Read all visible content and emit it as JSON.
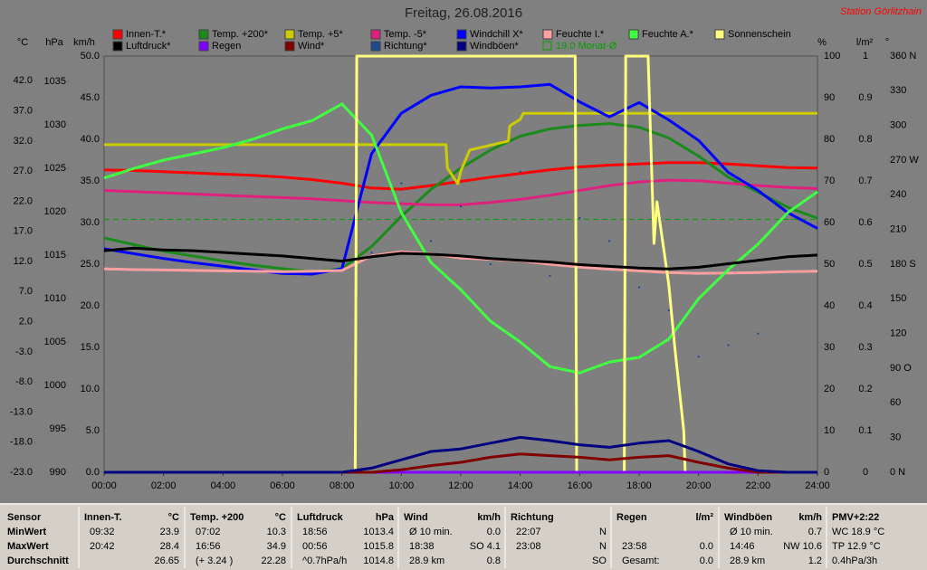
{
  "chart_data": {
    "type": "line",
    "title": "Freitag, 26.08.2016",
    "subtitle": "Station Görlitzhain",
    "xlim": [
      0,
      24
    ],
    "xticks": [
      {
        "value": 0,
        "label": "00:00"
      },
      {
        "value": 2,
        "label": "02:00"
      },
      {
        "value": 4,
        "label": "04:00"
      },
      {
        "value": 6,
        "label": "06:00"
      },
      {
        "value": 8,
        "label": "08:00"
      },
      {
        "value": 10,
        "label": "10:00"
      },
      {
        "value": 12,
        "label": "12:00"
      },
      {
        "value": 14,
        "label": "14:00"
      },
      {
        "value": 16,
        "label": "16:00"
      },
      {
        "value": 18,
        "label": "18:00"
      },
      {
        "value": 20,
        "label": "20:00"
      },
      {
        "value": 22,
        "label": "22:00"
      },
      {
        "value": 24,
        "label": "24:00"
      }
    ],
    "x": [
      0,
      1,
      2,
      3,
      4,
      5,
      6,
      7,
      8,
      9,
      10,
      11,
      12,
      13,
      14,
      15,
      16,
      17,
      18,
      19,
      20,
      21,
      22,
      23,
      24
    ],
    "axes": [
      {
        "unit": "°C",
        "lim": [
          -23,
          46.1
        ],
        "ticks": [
          {
            "value": 42,
            "label": "42.0"
          },
          {
            "value": 37,
            "label": "37.0"
          },
          {
            "value": 32,
            "label": "32.0"
          },
          {
            "value": 27,
            "label": "27.0"
          },
          {
            "value": 22,
            "label": "22.0"
          },
          {
            "value": 17,
            "label": "17.0"
          },
          {
            "value": 12,
            "label": "12.0"
          },
          {
            "value": 7,
            "label": "7.0"
          },
          {
            "value": 2,
            "label": "2.0"
          },
          {
            "value": -3,
            "label": "-3.0"
          },
          {
            "value": -8,
            "label": "-8.0"
          },
          {
            "value": -13,
            "label": "-13.0"
          },
          {
            "value": -18,
            "label": "-18.0"
          },
          {
            "value": -23,
            "label": "-23.0"
          }
        ]
      },
      {
        "unit": "hPa",
        "lim": [
          990,
          1037.9
        ],
        "ticks": [
          1035,
          1030,
          1025,
          1020,
          1015,
          1010,
          1005,
          1000,
          995,
          990
        ]
      },
      {
        "unit": "km/h",
        "lim": [
          0,
          50
        ],
        "ticks": [
          {
            "value": 50,
            "label": "50.0"
          },
          {
            "value": 45,
            "label": "45.0"
          },
          {
            "value": 40,
            "label": "40.0"
          },
          {
            "value": 35,
            "label": "35.0"
          },
          {
            "value": 30,
            "label": "30.0"
          },
          {
            "value": 25,
            "label": "25.0"
          },
          {
            "value": 20,
            "label": "20.0"
          },
          {
            "value": 15,
            "label": "15.0"
          },
          {
            "value": 10,
            "label": "10.0"
          },
          {
            "value": 5,
            "label": "5.0"
          },
          {
            "value": 0,
            "label": "0.0"
          }
        ]
      },
      {
        "unit": "%",
        "lim": [
          0,
          100
        ],
        "ticks": [
          100,
          90,
          80,
          70,
          60,
          50,
          40,
          30,
          20,
          10,
          0
        ]
      },
      {
        "unit": "l/m²",
        "lim": [
          0,
          1
        ],
        "ticks": [
          1,
          0.9,
          0.8,
          0.7,
          0.6,
          0.5,
          0.4,
          0.3,
          0.2,
          0.1,
          0
        ]
      },
      {
        "unit": "°",
        "lim": [
          0,
          360
        ],
        "ticks": [
          {
            "value": 360,
            "label": "360 N"
          },
          330,
          300,
          {
            "value": 270,
            "label": "270 W"
          },
          240,
          210,
          {
            "value": 180,
            "label": "180 S"
          },
          150,
          120,
          {
            "value": 90,
            "label": "90 O"
          },
          60,
          30,
          {
            "value": 0,
            "label": "0 N"
          }
        ]
      }
    ],
    "series": [
      {
        "name": "Innen-T.*",
        "color": "#ff0000",
        "axis": "°C",
        "values": [
          27.2,
          27.1,
          26.9,
          26.7,
          26.5,
          26.3,
          26.0,
          25.6,
          25.0,
          24.2,
          24.0,
          24.6,
          25.3,
          26.0,
          26.6,
          27.2,
          27.7,
          28.0,
          28.2,
          28.4,
          28.4,
          28.2,
          27.9,
          27.6,
          27.5
        ]
      },
      {
        "name": "Temp. +200*",
        "color": "#1a8a1a",
        "axis": "°C",
        "values": [
          15.9,
          14.8,
          13.7,
          12.9,
          12.1,
          11.4,
          10.8,
          10.3,
          10.8,
          14.5,
          19.5,
          24.0,
          27.5,
          30.5,
          32.8,
          34.0,
          34.6,
          34.9,
          34.3,
          32.5,
          29.5,
          26.0,
          23.5,
          21.0,
          19.2
        ]
      },
      {
        "name": "Temp. +5*",
        "color": "#cccc00",
        "axis": "°C",
        "x": [
          0,
          11.5,
          11.55,
          11.9,
          12.0,
          12.3,
          13.6,
          13.65,
          14.0,
          14.1,
          24
        ],
        "values": [
          31.4,
          31.4,
          27.5,
          24.9,
          27.0,
          30.5,
          32.0,
          34.5,
          35.6,
          36.6,
          36.6
        ]
      },
      {
        "name": "Temp. -5*",
        "color": "#e0207f",
        "axis": "°C",
        "values": [
          23.8,
          23.6,
          23.4,
          23.2,
          23.0,
          22.8,
          22.6,
          22.4,
          22.1,
          21.8,
          21.6,
          21.4,
          21.4,
          21.8,
          22.3,
          23.0,
          23.8,
          24.6,
          25.2,
          25.5,
          25.4,
          25.0,
          24.6,
          24.3,
          24.1
        ]
      },
      {
        "name": "Windchill X*",
        "color": "#0000ff",
        "axis": "°C",
        "values": [
          14.1,
          13.3,
          12.5,
          11.8,
          11.2,
          10.6,
          10.0,
          9.9,
          10.8,
          29.9,
          36.6,
          39.6,
          41.0,
          40.8,
          41.0,
          41.4,
          38.5,
          36.0,
          38.4,
          35.5,
          32.1,
          26.8,
          23.8,
          20.1,
          17.5
        ]
      },
      {
        "name": "Feuchte I.*",
        "color": "#ff9f9f",
        "axis": "%",
        "values": [
          48.9,
          48.7,
          48.6,
          48.5,
          48.4,
          48.3,
          48.2,
          48.3,
          48.5,
          52.0,
          53.0,
          52.5,
          51.5,
          51.2,
          50.8,
          50.0,
          49.3,
          48.8,
          48.4,
          48.0,
          47.8,
          47.9,
          48.0,
          48.2,
          48.3
        ]
      },
      {
        "name": "Feuchte A.*",
        "color": "#40ff40",
        "axis": "%",
        "values": [
          70.7,
          73.0,
          75.0,
          76.5,
          78.0,
          80.0,
          82.5,
          84.5,
          88.5,
          81.0,
          62.4,
          50.4,
          43.9,
          36.3,
          31.3,
          25.4,
          23.9,
          26.5,
          27.6,
          32.0,
          41.7,
          48.7,
          54.8,
          62.4,
          67.4
        ]
      },
      {
        "name": "Sonnenschein",
        "color": "#ffff80",
        "axis": "%",
        "x": [
          0,
          8.45,
          8.5,
          15.85,
          15.9,
          17.5,
          17.55,
          18.3,
          18.5,
          18.6,
          18.7,
          18.8,
          19.0,
          19.2,
          19.5,
          19.55,
          24
        ],
        "values": [
          0,
          0,
          100,
          100,
          0,
          0,
          100,
          100,
          55,
          65,
          60,
          55,
          45,
          30,
          10,
          0,
          0
        ]
      },
      {
        "name": "Luftdruck*",
        "color": "#000000",
        "axis": "hPa",
        "values": [
          1015.5,
          1015.8,
          1015.6,
          1015.5,
          1015.3,
          1015.1,
          1014.9,
          1014.6,
          1014.3,
          1014.8,
          1015.2,
          1015.1,
          1014.9,
          1014.6,
          1014.4,
          1014.2,
          1013.9,
          1013.7,
          1013.5,
          1013.4,
          1013.6,
          1014.0,
          1014.4,
          1014.8,
          1015.0
        ]
      },
      {
        "name": "Regen",
        "color": "#8000ff",
        "axis": "l/m²",
        "values": [
          0,
          0,
          0,
          0,
          0,
          0,
          0,
          0,
          0,
          0,
          0,
          0,
          0,
          0,
          0,
          0,
          0,
          0,
          0,
          0,
          0,
          0,
          0,
          0,
          0
        ]
      },
      {
        "name": "Wind*",
        "color": "#800000",
        "axis": "km/h",
        "values": [
          0,
          0,
          0,
          0,
          0,
          0,
          0,
          0,
          0,
          0,
          0.3,
          0.8,
          1.2,
          1.8,
          2.2,
          2.0,
          1.8,
          1.5,
          1.8,
          2.0,
          1.2,
          0.5,
          0,
          0,
          0
        ]
      },
      {
        "name": "Richtung*",
        "color": "#1c4a8c",
        "axis": "°",
        "type": "scatter",
        "x": [
          9,
          10,
          11,
          12,
          13,
          14,
          15,
          16,
          17,
          18,
          19,
          20,
          21,
          22
        ],
        "values": [
          190,
          250,
          200,
          230,
          180,
          260,
          170,
          220,
          200,
          160,
          140,
          100,
          110,
          120
        ]
      },
      {
        "name": "Windböen*",
        "color": "#000080",
        "axis": "km/h",
        "values": [
          0,
          0,
          0,
          0,
          0,
          0,
          0,
          0,
          0,
          0.5,
          1.5,
          2.5,
          2.8,
          3.5,
          4.2,
          3.8,
          3.3,
          3.0,
          3.5,
          3.8,
          2.5,
          1.0,
          0.2,
          0,
          0
        ]
      }
    ],
    "monthly_average": {
      "label": "19.0 Monat-Ø",
      "value": 19.0,
      "axis": "°C",
      "color": "#00a000"
    }
  },
  "table": {
    "row_labels": [
      "Sensor",
      "MinWert",
      "MaxWert",
      "Durchschnitt"
    ],
    "groups": [
      {
        "header": [
          "Innen-T.",
          "°C"
        ],
        "rows": [
          [
            "09:32",
            "23.9"
          ],
          [
            "20:42",
            "28.4"
          ],
          [
            null,
            "26.65"
          ]
        ]
      },
      {
        "header": [
          "Temp. +200",
          "°C"
        ],
        "rows": [
          [
            "07:02",
            "10.3"
          ],
          [
            "16:56",
            "34.9"
          ],
          [
            "(+ 3.24 )",
            "22.28"
          ]
        ]
      },
      {
        "header": [
          "Luftdruck",
          "hPa"
        ],
        "rows": [
          [
            "18:56",
            "1013.4"
          ],
          [
            "00:56",
            "1015.8"
          ],
          [
            "^0.7hPa/h",
            "1014.8"
          ]
        ]
      },
      {
        "header": [
          "Wind",
          "km/h"
        ],
        "rows": [
          [
            "Ø 10 min.",
            "0.0"
          ],
          [
            "18:38",
            "SO 4.1"
          ],
          [
            "28.9 km",
            "0.8"
          ]
        ]
      },
      {
        "header": [
          "Richtung"
        ],
        "rows": [
          [
            "22:07",
            "N"
          ],
          [
            "23:08",
            "N"
          ],
          [
            null,
            "SO"
          ]
        ]
      },
      {
        "header": [
          "Regen",
          "l/m²"
        ],
        "rows": [
          [
            null,
            null
          ],
          [
            "23:58",
            "0.0"
          ],
          [
            "Gesamt:",
            "0.0"
          ]
        ]
      },
      {
        "header": [
          "Windböen",
          "km/h"
        ],
        "rows": [
          [
            "Ø 10 min.",
            "0.7"
          ],
          [
            "14:46",
            "NW 10.6"
          ],
          [
            "28.9 km",
            "1.2"
          ]
        ]
      },
      {
        "header": [
          "PMV+2:22"
        ],
        "rows": [
          [
            "WC 18.9 °C"
          ],
          [
            "TP 12.9 °C"
          ],
          [
            "0.4hPa/3h"
          ]
        ]
      }
    ]
  }
}
